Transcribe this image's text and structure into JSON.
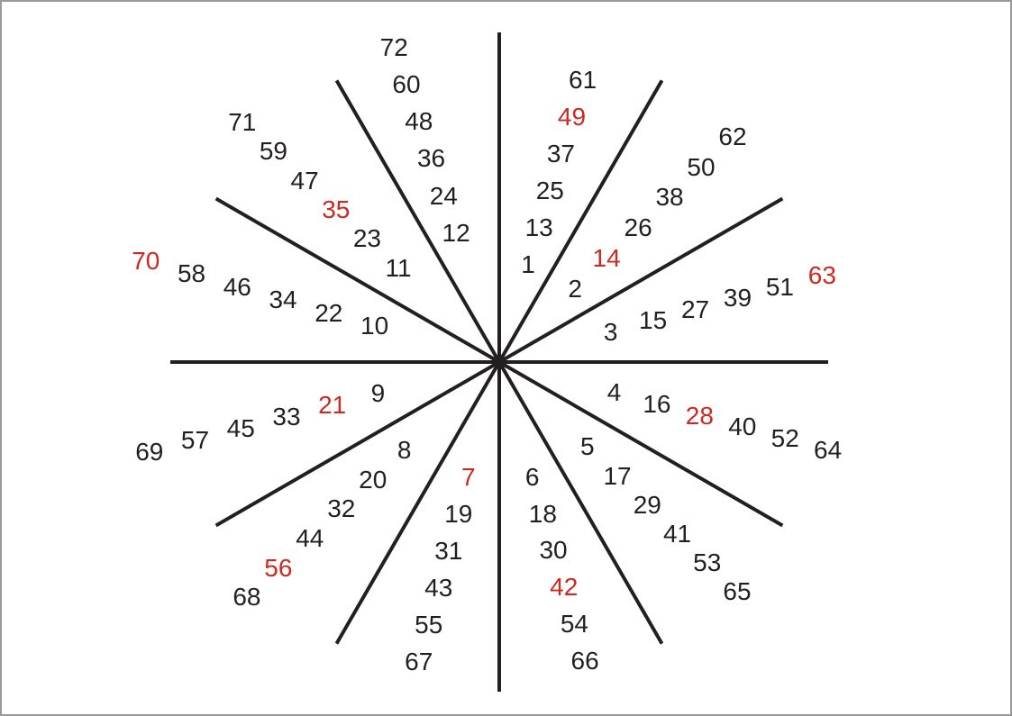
{
  "diagram": {
    "type": "number-star",
    "rays": [
      {
        "numbers": [
          1,
          13,
          25,
          37,
          49,
          61
        ]
      },
      {
        "numbers": [
          2,
          14,
          26,
          38,
          50,
          62
        ]
      },
      {
        "numbers": [
          3,
          15,
          27,
          39,
          51,
          63
        ]
      },
      {
        "numbers": [
          4,
          16,
          28,
          40,
          52,
          64
        ]
      },
      {
        "numbers": [
          5,
          17,
          29,
          41,
          53,
          65
        ]
      },
      {
        "numbers": [
          6,
          18,
          30,
          42,
          54,
          66
        ]
      },
      {
        "numbers": [
          7,
          19,
          31,
          43,
          55,
          67
        ]
      },
      {
        "numbers": [
          8,
          20,
          32,
          44,
          56,
          68
        ]
      },
      {
        "numbers": [
          9,
          21,
          33,
          45,
          57,
          69
        ]
      },
      {
        "numbers": [
          10,
          22,
          34,
          46,
          58,
          70
        ]
      },
      {
        "numbers": [
          11,
          23,
          35,
          47,
          59,
          71
        ]
      },
      {
        "numbers": [
          12,
          24,
          36,
          48,
          60,
          72
        ]
      }
    ],
    "highlighted_numbers": [
      7,
      14,
      21,
      28,
      35,
      42,
      49,
      56,
      63,
      70
    ],
    "colors": {
      "text": "#231f20",
      "highlight": "#cc2a20",
      "line": "#231f20",
      "frame_border": "#999999",
      "background": "#ffffff"
    }
  }
}
